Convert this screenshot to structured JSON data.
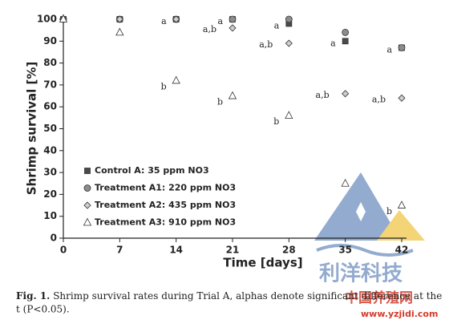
{
  "chart_data": {
    "type": "scatter",
    "x_label": "Time [days]",
    "y_label": "Shrimp survival [%]",
    "x": [
      0,
      7,
      14,
      21,
      28,
      35,
      42
    ],
    "xlim": [
      0,
      42
    ],
    "xticks": [
      0,
      7,
      14,
      21,
      28,
      35,
      42
    ],
    "ylim": [
      0,
      100
    ],
    "yticks": [
      0,
      10,
      20,
      30,
      40,
      50,
      60,
      70,
      80,
      90,
      100
    ],
    "series": [
      {
        "name": "Control A: 35 ppm NO3",
        "marker": "square",
        "color": "#4a4a4a",
        "values": [
          100,
          100,
          100,
          100,
          98,
          90,
          87
        ],
        "point_labels": [
          null,
          null,
          "a",
          "a",
          "a",
          "a",
          "a"
        ]
      },
      {
        "name": "Treatment A1: 220 ppm NO3",
        "marker": "circle",
        "color": "#8c8c8c",
        "values": [
          100,
          100,
          100,
          100,
          100,
          94,
          87
        ]
      },
      {
        "name": "Treatment A2: 435 ppm NO3",
        "marker": "diamond",
        "color": "#cfcfcf",
        "values": [
          100,
          100,
          100,
          96,
          89,
          66,
          64
        ],
        "point_labels": [
          null,
          null,
          null,
          "a,b",
          "a,b",
          "a,b",
          "a,b"
        ]
      },
      {
        "name": "Treatment A3: 910 ppm NO3",
        "marker": "triangle",
        "color": "#ffffff",
        "values": [
          100,
          94,
          72,
          65,
          56,
          25,
          15
        ],
        "point_labels": [
          null,
          null,
          "b",
          "b",
          "b",
          null,
          "b"
        ]
      }
    ]
  },
  "caption": {
    "label": "Fig. 1.",
    "lines": [
      "Shrimp survival rates during Trial A, alphas denote significant difference at the",
      "t (P<0.05)."
    ]
  },
  "watermark": {
    "brand": "利洋科技",
    "site": "中国养殖网",
    "url": "www.yzjidi.com"
  }
}
